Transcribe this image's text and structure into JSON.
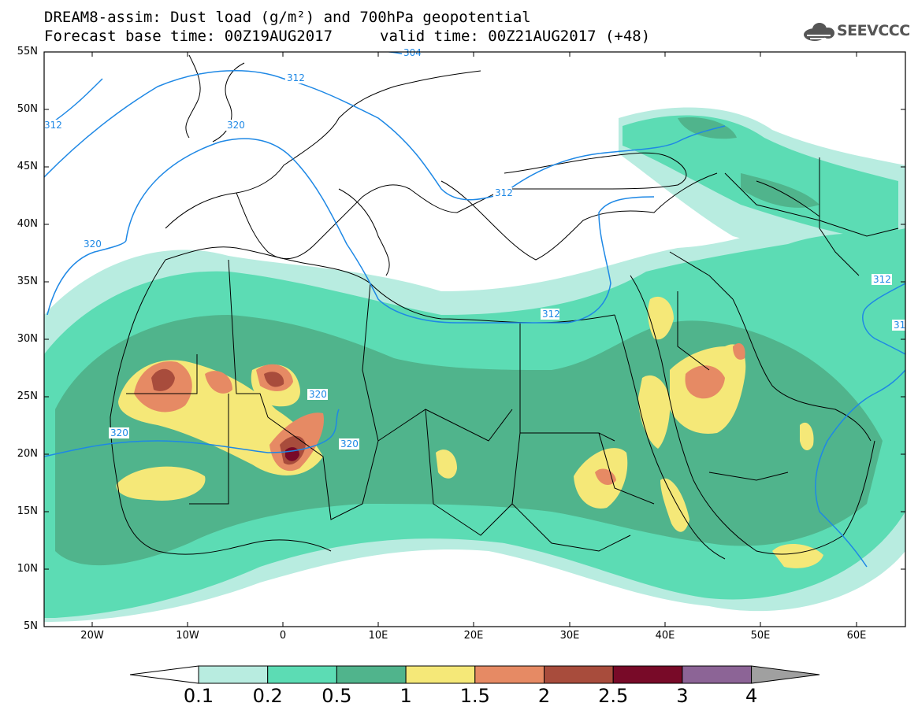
{
  "header": {
    "line1": "DREAM8-assim: Dust load (g/m²) and 700hPa geopotential",
    "line2": "Forecast base time: 00Z19AUG2017",
    "valid": "valid time: 00Z21AUG2017 (+48)",
    "logo_text": "SEEVCCC"
  },
  "axes": {
    "lat_labels": [
      "55N",
      "50N",
      "45N",
      "40N",
      "35N",
      "30N",
      "25N",
      "20N",
      "15N",
      "10N",
      "5N"
    ],
    "lon_labels": [
      "20W",
      "10W",
      "0",
      "10E",
      "20E",
      "30E",
      "40E",
      "50E",
      "60E"
    ]
  },
  "contours": {
    "labels": [
      "304",
      "312",
      "320",
      "320",
      "312",
      "312",
      "320",
      "320",
      "320",
      "312",
      "312",
      "31"
    ]
  },
  "colorbar": {
    "ticks": [
      "0.1",
      "0.2",
      "0.5",
      "1",
      "1.5",
      "2",
      "2.5",
      "3",
      "4"
    ],
    "colors": [
      "#b8ece0",
      "#5cdcb4",
      "#50b48c",
      "#f5e878",
      "#e68a64",
      "#a84c3c",
      "#780a28",
      "#8c6496",
      "#a0a0a0"
    ]
  },
  "colors": {
    "contour": "#1e88e5",
    "boundary": "#000000"
  }
}
